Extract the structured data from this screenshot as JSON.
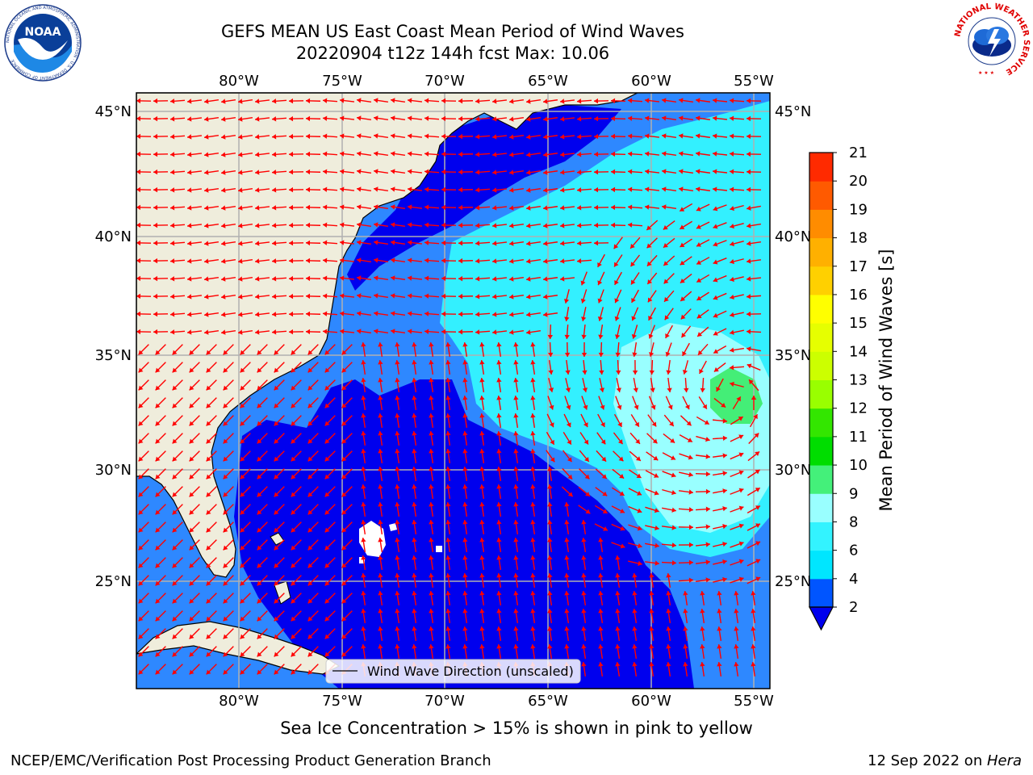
{
  "title_line1": "GEFS MEAN US East Coast Mean Period of Wind Waves",
  "title_line2": "20220904 t12z 144h fcst   Max: 10.06",
  "noaa_logo_text": "NOAA",
  "noaa_ring_text": "NATIONAL OCEANIC AND ATMOSPHERIC ADMINISTRATION · U.S. DEPARTMENT OF COMMERCE",
  "nws_ring_text": "NATIONAL WEATHER SERVICE",
  "lon_labels": [
    "80°W",
    "75°W",
    "70°W",
    "65°W",
    "60°W",
    "55°W"
  ],
  "lat_labels": [
    "45°N",
    "40°N",
    "35°N",
    "30°N",
    "25°N"
  ],
  "legend_label": "Wind Wave Direction (unscaled)",
  "colorbar": {
    "label": "Mean Period of Wind Waves [s]",
    "ticks": [
      "2",
      "4",
      "6",
      "8",
      "9",
      "10",
      "11",
      "12",
      "13",
      "14",
      "15",
      "16",
      "17",
      "18",
      "19",
      "20",
      "21"
    ],
    "colors": [
      "#0055ff",
      "#00e6ff",
      "#33f3ff",
      "#99ffff",
      "#44f07a",
      "#00dd00",
      "#33e600",
      "#99ff00",
      "#ccff00",
      "#e6ff00",
      "#ffff00",
      "#ffd000",
      "#ffb000",
      "#ff8c00",
      "#ff5a00",
      "#ff2a00",
      "#ff0000"
    ],
    "extend_color": "#0000ee"
  },
  "colors": {
    "land": "#efeddc",
    "deep": "#0000ee",
    "mid": "#0a64ff",
    "shallow": "#2e88ff",
    "cyan": "#33f0ff",
    "light": "#99ffff",
    "green": "#44ee77",
    "arrow": "#ff0000",
    "grid": "#b0b0b0"
  },
  "note": "Sea Ice Concentration > 15% is shown in pink to yellow",
  "footer_left": "NCEP/EMC/Verification Post Processing Product Generation Branch",
  "footer_right_date": "12 Sep 2022 on ",
  "footer_right_host": "Hera"
}
